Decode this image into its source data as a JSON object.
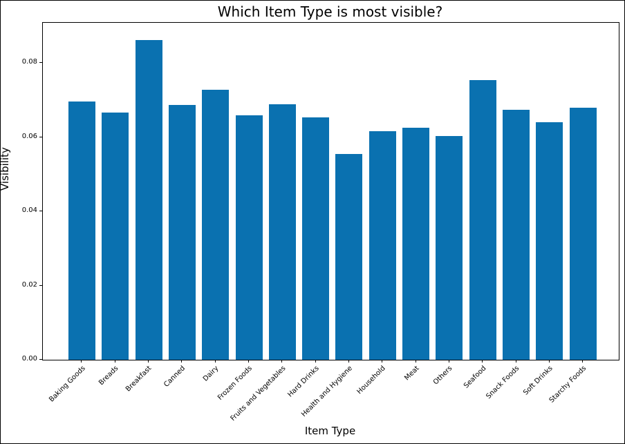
{
  "chart_data": {
    "type": "bar",
    "title": "Which Item Type is most visible?",
    "xlabel": "Item Type",
    "ylabel": "Visibility",
    "categories": [
      "Baking Goods",
      "Breads",
      "Breakfast",
      "Canned",
      "Dairy",
      "Frozen Foods",
      "Fruits and Vegetables",
      "Hard Drinks",
      "Health and Hygiene",
      "Household",
      "Meat",
      "Others",
      "Seafood",
      "Snack Foods",
      "Soft Drinks",
      "Starchy Foods"
    ],
    "values": [
      0.0695,
      0.0666,
      0.0862,
      0.0686,
      0.0728,
      0.0658,
      0.0688,
      0.0653,
      0.0554,
      0.0615,
      0.0625,
      0.0603,
      0.0753,
      0.0673,
      0.0641,
      0.068
    ],
    "yticks": [
      0.0,
      0.02,
      0.04,
      0.06,
      0.08
    ],
    "ytick_labels": [
      "0.00",
      "0.02",
      "0.04",
      "0.06",
      "0.08"
    ],
    "ylim": [
      0,
      0.0908
    ],
    "bar_color": "#0a71b0",
    "grid": false,
    "legend": null,
    "x_tick_rotation_deg": 45
  }
}
